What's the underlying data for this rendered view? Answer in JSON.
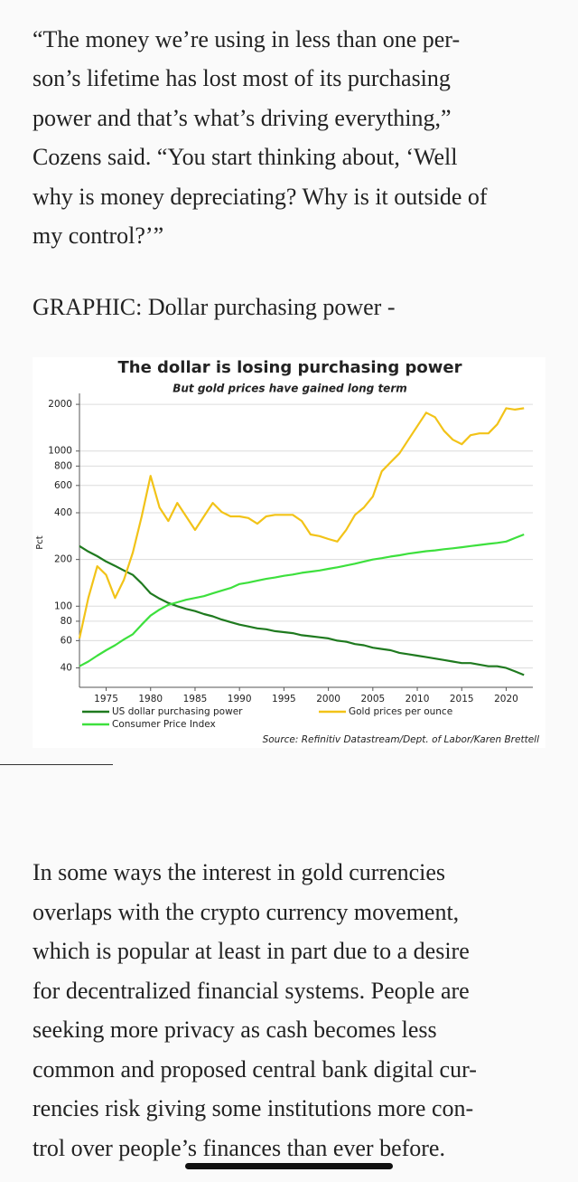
{
  "article": {
    "paragraph_1": [
      "“The money we’re using in less than one per-",
      "son’s lifetime has lost most of its purchasing",
      "power and that’s what’s driving everything,”",
      "Cozens said. “You start thinking about, ‘Well",
      "why is money depreciating? Why is it outside of",
      "my control?’”"
    ],
    "graphic_caption": "GRAPHIC: Dollar purchasing power -",
    "paragraph_2": [
      "In some ways the interest in gold currencies",
      "overlaps with the crypto currency movement,",
      "which is popular at least in part due to a desire",
      "for decentralized financial systems. People are",
      "seeking more privacy as cash becomes less",
      "common and proposed central bank digital cur-",
      "rencies risk giving some institutions more con-",
      "trol over people’s finances than ever before."
    ]
  },
  "chart_data": {
    "type": "line",
    "title": "The dollar is losing purchasing power",
    "subtitle": "But gold prices have gained long term",
    "y_label": "Pct",
    "source": "Source: Refinitiv Datastream/Dept. of Labor/Karen Brettell",
    "log_scale": true,
    "grid": true,
    "xlim": [
      1972,
      2023
    ],
    "xticks": [
      1975,
      1980,
      1985,
      1990,
      1995,
      2000,
      2005,
      2010,
      2015,
      2020
    ],
    "ylim": [
      30,
      2200
    ],
    "yticks": [
      40,
      60,
      80,
      100,
      200,
      400,
      600,
      800,
      1000,
      2000
    ],
    "x": [
      1972,
      1973,
      1974,
      1975,
      1976,
      1977,
      1978,
      1979,
      1980,
      1981,
      1982,
      1983,
      1984,
      1985,
      1986,
      1987,
      1988,
      1989,
      1990,
      1991,
      1992,
      1993,
      1994,
      1995,
      1996,
      1997,
      1998,
      1999,
      2000,
      2001,
      2002,
      2003,
      2004,
      2005,
      2006,
      2007,
      2008,
      2009,
      2010,
      2011,
      2012,
      2013,
      2014,
      2015,
      2016,
      2017,
      2018,
      2019,
      2020,
      2021,
      2022
    ],
    "series": [
      {
        "name": "US dollar purchasing power",
        "color": "#1f7a1f",
        "values": [
          244,
          225,
          210,
          194,
          182,
          170,
          159,
          140,
          121,
          112,
          105,
          100,
          96,
          93,
          89,
          86,
          82,
          79,
          76,
          74,
          72,
          71,
          69,
          68,
          67,
          65,
          64,
          63,
          62,
          60,
          59,
          57,
          56,
          54,
          53,
          52,
          50,
          49,
          48,
          47,
          46,
          45,
          44,
          43,
          43,
          42,
          41,
          41,
          40,
          38,
          36
        ]
      },
      {
        "name": "Consumer Price Index",
        "color": "#3de03d",
        "values": [
          41,
          44,
          48,
          52,
          56,
          61,
          66,
          76,
          87,
          95,
          102,
          106,
          110,
          113,
          116,
          121,
          126,
          131,
          139,
          142,
          146,
          150,
          153,
          157,
          160,
          164,
          167,
          170,
          174,
          178,
          183,
          188,
          194,
          200,
          204,
          209,
          213,
          218,
          222,
          226,
          229,
          233,
          236,
          240,
          244,
          248,
          252,
          256,
          261,
          275,
          290
        ]
      },
      {
        "name": "Gold prices per ounce",
        "color": "#f2c318",
        "values": [
          62,
          113,
          181,
          159,
          113,
          148,
          222,
          379,
          692,
          433,
          354,
          463,
          379,
          310,
          379,
          463,
          405,
          379,
          379,
          370,
          340,
          379,
          388,
          388,
          388,
          354,
          290,
          283,
          271,
          261,
          310,
          388,
          433,
          509,
          740,
          847,
          968,
          1183,
          1445,
          1767,
          1653,
          1352,
          1183,
          1106,
          1265,
          1300,
          1300,
          1486,
          1888,
          1850,
          1888
        ]
      }
    ]
  }
}
